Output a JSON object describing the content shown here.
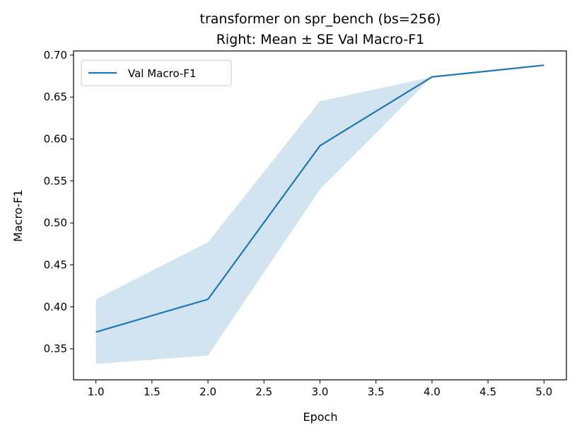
{
  "chart_data": {
    "type": "line",
    "title": "transformer on spr_bench (bs=256)",
    "subtitle": "Right: Mean ± SE Val Macro-F1",
    "xlabel": "Epoch",
    "ylabel": "Macro-F1",
    "xlim": [
      0.8,
      5.2
    ],
    "ylim": [
      0.313,
      0.705
    ],
    "xticks": [
      "1.0",
      "1.5",
      "2.0",
      "2.5",
      "3.0",
      "3.5",
      "4.0",
      "4.5",
      "5.0"
    ],
    "yticks": [
      "0.35",
      "0.40",
      "0.45",
      "0.50",
      "0.55",
      "0.60",
      "0.65",
      "0.70"
    ],
    "grid": false,
    "legend_position": "top-left",
    "series": [
      {
        "name": "Val Macro-F1",
        "color": "#1f77b4",
        "band_color": "#1f77b4",
        "x": [
          1,
          2,
          3,
          4,
          5
        ],
        "y": [
          0.37,
          0.409,
          0.592,
          0.674,
          0.688
        ],
        "lower": [
          0.332,
          0.342,
          0.54,
          0.674,
          0.688
        ],
        "upper": [
          0.409,
          0.477,
          0.645,
          0.674,
          0.688
        ]
      }
    ]
  }
}
